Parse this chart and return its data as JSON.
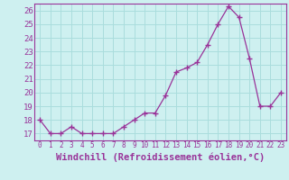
{
  "x": [
    0,
    1,
    2,
    3,
    4,
    5,
    6,
    7,
    8,
    9,
    10,
    11,
    12,
    13,
    14,
    15,
    16,
    17,
    18,
    19,
    20,
    21,
    22,
    23
  ],
  "y": [
    18,
    17,
    17,
    17.5,
    17,
    17,
    17,
    17,
    17.5,
    18,
    18.5,
    18.5,
    19.8,
    21.5,
    21.8,
    22.2,
    23.5,
    25,
    26.3,
    25.5,
    22.5,
    19,
    19,
    20
  ],
  "line_color": "#993399",
  "marker": "+",
  "marker_size": 4,
  "marker_linewidth": 1.0,
  "background_color": "#cef0f0",
  "grid_color": "#aadddd",
  "xlabel": "Windchill (Refroidissement éolien,°C)",
  "xlabel_color": "#993399",
  "xlim": [
    -0.5,
    23.5
  ],
  "ylim": [
    16.5,
    26.5
  ],
  "yticks": [
    17,
    18,
    19,
    20,
    21,
    22,
    23,
    24,
    25,
    26
  ],
  "xticks": [
    0,
    1,
    2,
    3,
    4,
    5,
    6,
    7,
    8,
    9,
    10,
    11,
    12,
    13,
    14,
    15,
    16,
    17,
    18,
    19,
    20,
    21,
    22,
    23
  ],
  "tick_color": "#993399",
  "ytick_labelsize": 6.5,
  "xtick_labelsize": 5.5,
  "xlabel_fontsize": 7.5,
  "linewidth": 0.9
}
